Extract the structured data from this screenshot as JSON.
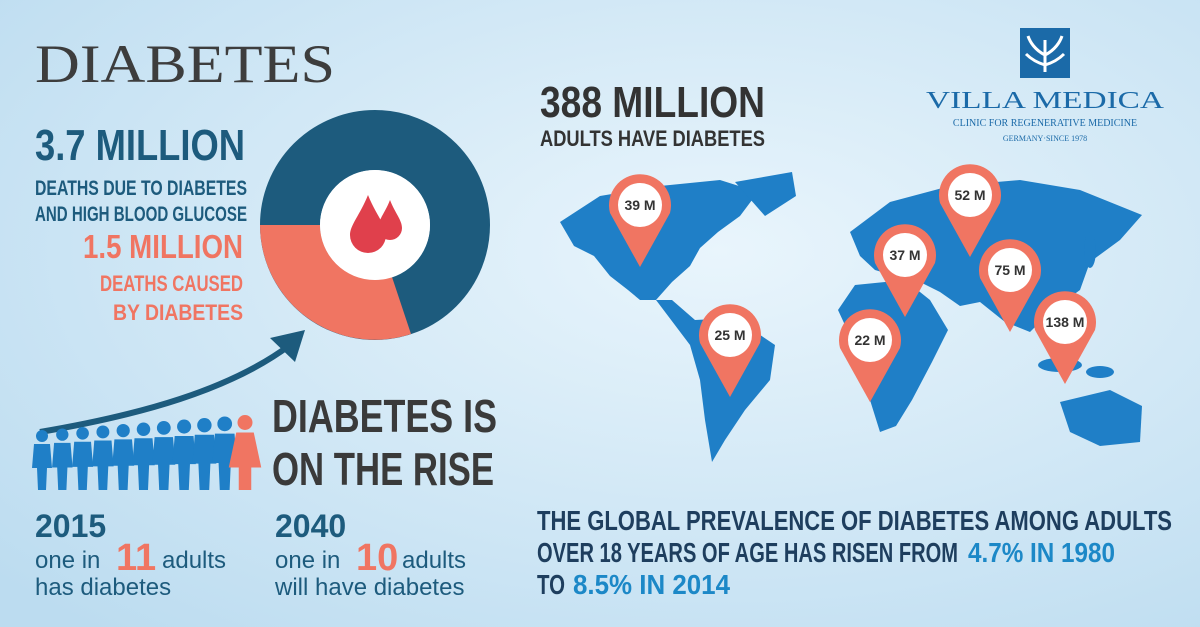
{
  "title": "DIABETES",
  "deaths": {
    "total": "3.7 MILLION",
    "total_lines": [
      "DEATHS DUE TO DIABETES",
      "AND HIGH BLOOD GLUCOSE"
    ],
    "diabetes": "1.5 MILLION",
    "diabetes_lines": [
      "DEATHS CAUSED",
      "BY DIABETES"
    ]
  },
  "rise": {
    "heading": [
      "DIABETES IS",
      "ON THE RISE"
    ],
    "years": [
      {
        "year": "2015",
        "prefix": "one in",
        "ratio": "11",
        "suffix": "adults",
        "last_line": "has diabetes"
      },
      {
        "year": "2040",
        "prefix": "one in",
        "ratio": "10",
        "suffix": "adults",
        "last_line": "will have diabetes"
      }
    ]
  },
  "world": {
    "total": "388 MILLION",
    "caption": "ADULTS HAVE DIABETES",
    "pins": [
      "39 M",
      "52 M",
      "37 M",
      "75 M",
      "25 M",
      "22 M",
      "138 M"
    ]
  },
  "prevalence": {
    "line1": "THE GLOBAL PREVALENCE OF DIABETES AMONG ADULTS",
    "line2": "OVER 18 YEARS OF AGE HAS RISEN FROM",
    "from": "4.7% IN 1980",
    "to_word": "TO",
    "to": "8.5% IN 2014"
  },
  "logo": {
    "name": "VILLA MEDICA",
    "tagline": "CLINIC FOR REGENERATIVE MEDICINE",
    "since": "GERMANY·SINCE 1978"
  }
}
